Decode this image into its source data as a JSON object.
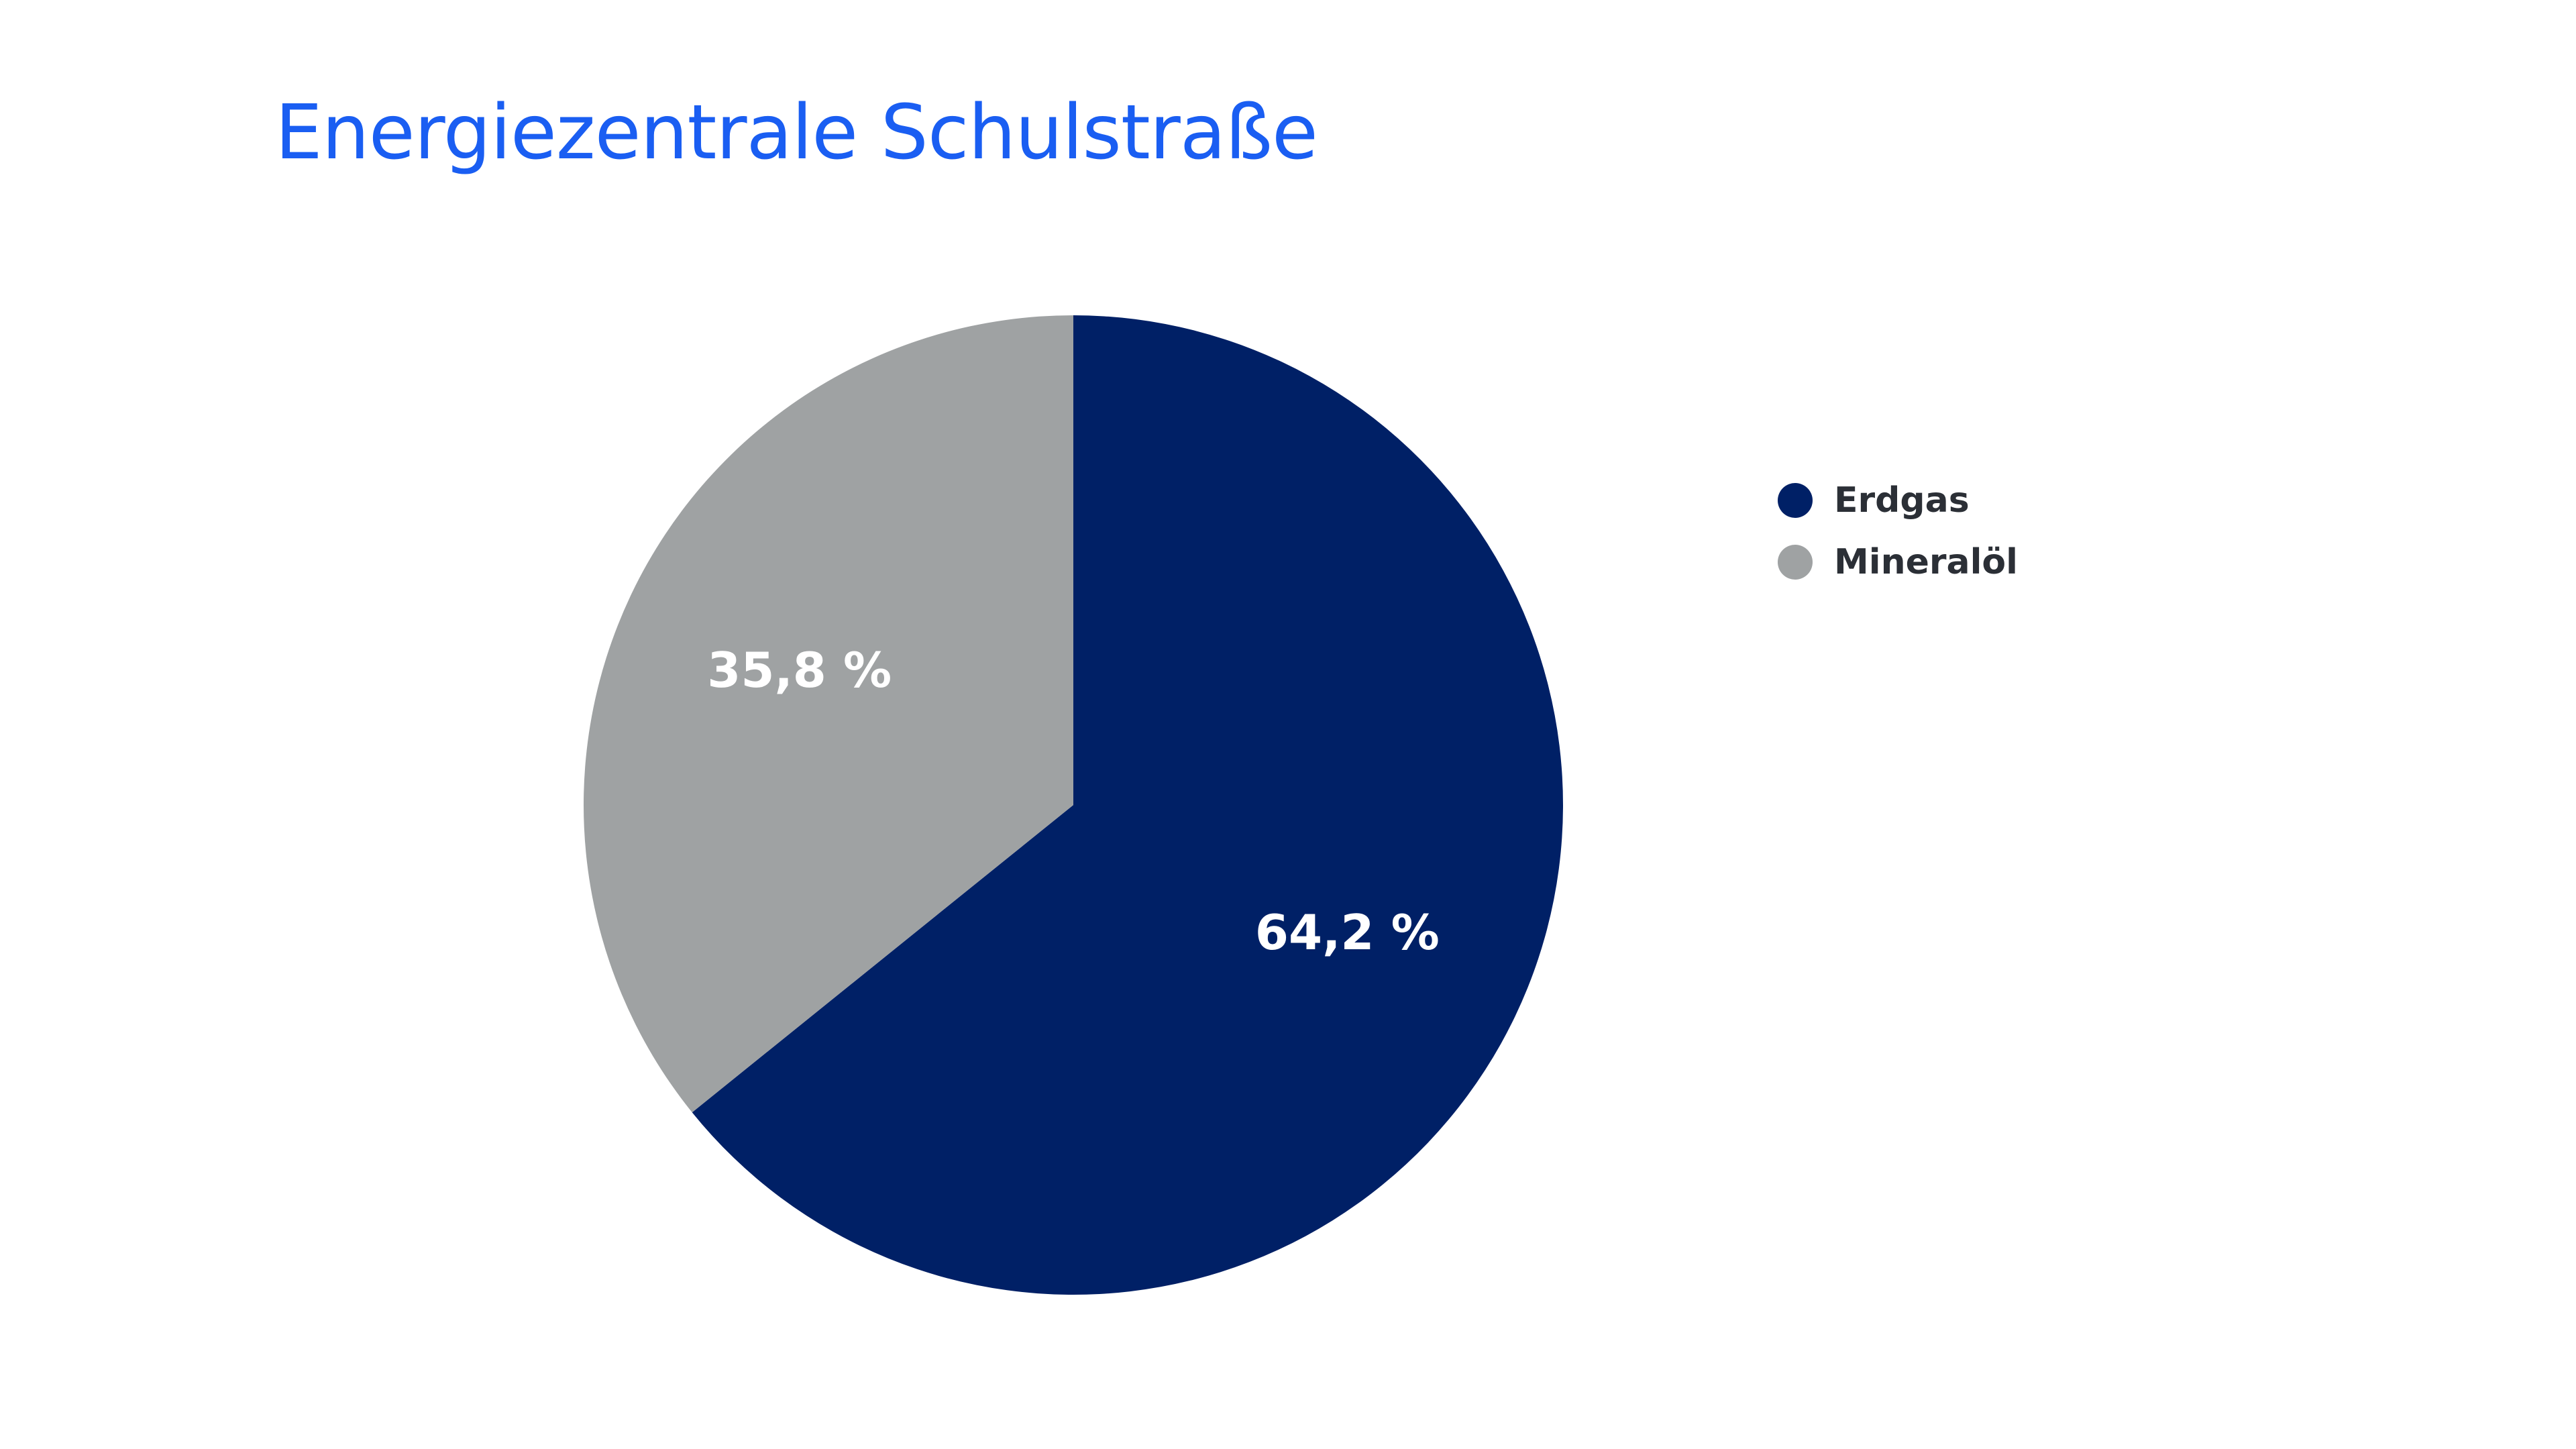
{
  "colors": {
    "title": "#1a5ef2",
    "legend_text": "#2b2f36",
    "slice_label": "#ffffff",
    "background": "#ffffff"
  },
  "chart_data": {
    "type": "pie",
    "title": "Energiezentrale Schulstraße",
    "start_angle_deg": 0,
    "direction": "clockwise",
    "legend_position": "right",
    "slices": [
      {
        "label": "Erdgas",
        "value": 64.2,
        "display": "64,2 %",
        "color": "#002066"
      },
      {
        "label": "Mineralöl",
        "value": 35.8,
        "display": "35,8 %",
        "color": "#9fa2a3"
      }
    ]
  }
}
